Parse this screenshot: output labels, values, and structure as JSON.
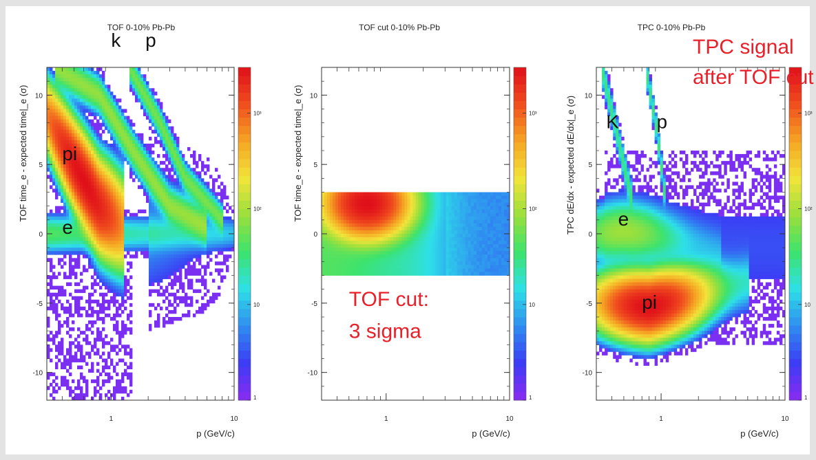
{
  "chart_data": [
    {
      "type": "heatmap",
      "title": "TOF 0-10% Pb-Pb",
      "xlabel": "p (GeV/c)",
      "ylabel": "TOF time_e - expected time|_e (σ)",
      "xscale": "log",
      "xlim": [
        0.3,
        10
      ],
      "ylim": [
        -12,
        12
      ],
      "zscale": "log",
      "zlim": [
        1,
        3000
      ],
      "x_ticks": [
        "1",
        "10"
      ],
      "y_ticks": [
        "10",
        "5",
        "0",
        "-5",
        "-10"
      ],
      "z_ticks": [
        "1",
        "10",
        "10²",
        "10³"
      ],
      "annotations": [
        {
          "text": "k",
          "x": 1.0,
          "y": 13.5
        },
        {
          "text": "p",
          "x": 1.9,
          "y": 13.5
        },
        {
          "text": "pi",
          "x": 0.4,
          "y": 5.3
        },
        {
          "text": "e",
          "x": 0.4,
          "y": 0.0
        }
      ],
      "bands": [
        {
          "name": "pi",
          "center": [
            [
              0.3,
              8.5
            ],
            [
              0.5,
              5.0
            ],
            [
              0.8,
              2.0
            ],
            [
              1.3,
              0.5
            ]
          ],
          "width": 1.6,
          "peak": 3000
        },
        {
          "name": "e",
          "center": [
            [
              0.3,
              0
            ],
            [
              10,
              0
            ]
          ],
          "width": 0.9,
          "peak": 40
        },
        {
          "name": "k",
          "center": [
            [
              0.35,
              12
            ],
            [
              0.8,
              10
            ],
            [
              1.5,
              6
            ],
            [
              3,
              2
            ],
            [
              6,
              0.5
            ]
          ],
          "width": 0.9,
          "peak": 80
        },
        {
          "name": "p",
          "center": [
            [
              1.4,
              12
            ],
            [
              2.5,
              8
            ],
            [
              4,
              4
            ],
            [
              8,
              1
            ]
          ],
          "width": 0.7,
          "peak": 60
        }
      ]
    },
    {
      "type": "heatmap",
      "title": "TOF cut 0-10% Pb-Pb",
      "xlabel": "p (GeV/c)",
      "ylabel": "TOF time_e - expected time|_e (σ)",
      "xscale": "log",
      "xlim": [
        0.3,
        10
      ],
      "ylim": [
        -12,
        12
      ],
      "zscale": "log",
      "zlim": [
        1,
        3000
      ],
      "x_ticks": [
        "1",
        "10"
      ],
      "y_ticks": [
        "10",
        "5",
        "0",
        "-5",
        "-10"
      ],
      "z_ticks": [
        "1",
        "10",
        "10²",
        "10³"
      ],
      "cut_range": [
        -3,
        3
      ],
      "annotations": [
        {
          "text": "TOF cut:",
          "x": 0.5,
          "y": -5.2
        },
        {
          "text": "3 sigma",
          "x": 0.5,
          "y": -7.5
        }
      ]
    },
    {
      "type": "heatmap",
      "title": "TPC 0-10% Pb-Pb",
      "xlabel": "p (GeV/c)",
      "ylabel": "TPC dE/dx - expected dE/dx|_e (σ)",
      "xscale": "log",
      "xlim": [
        0.3,
        10
      ],
      "ylim": [
        -12,
        12
      ],
      "zscale": "log",
      "zlim": [
        1,
        3000
      ],
      "x_ticks": [
        "1",
        "10"
      ],
      "y_ticks": [
        "10",
        "5",
        "0",
        "-5",
        "-10"
      ],
      "z_ticks": [
        "1",
        "10",
        "10²",
        "10³"
      ],
      "annotations": [
        {
          "text": "TPC signal",
          "x": 1.8,
          "y": 13.0
        },
        {
          "text": "after TOF cut",
          "x": 1.8,
          "y": 10.8
        },
        {
          "text": "K",
          "x": 0.36,
          "y": 7.6
        },
        {
          "text": "p",
          "x": 0.92,
          "y": 7.6
        },
        {
          "text": "e",
          "x": 0.45,
          "y": 0.6
        },
        {
          "text": "pi",
          "x": 0.7,
          "y": -5.4
        }
      ],
      "bands": [
        {
          "name": "e",
          "center": [
            [
              0.3,
              0
            ],
            [
              0.5,
              0.2
            ],
            [
              0.8,
              0
            ],
            [
              1.5,
              -0.5
            ],
            [
              3,
              -1.5
            ]
          ],
          "width": 1.3,
          "peak": 80
        },
        {
          "name": "pi",
          "center": [
            [
              0.3,
              -5
            ],
            [
              0.8,
              -5.3
            ],
            [
              2,
              -4.5
            ],
            [
              5,
              -3.5
            ]
          ],
          "width": 1.3,
          "peak": 3000
        },
        {
          "name": "K",
          "center": [
            [
              0.33,
              12
            ],
            [
              0.42,
              8
            ],
            [
              0.5,
              5
            ],
            [
              0.6,
              2
            ]
          ],
          "width": 0.8,
          "peak": 30
        },
        {
          "name": "p",
          "center": [
            [
              0.75,
              12
            ],
            [
              0.9,
              8
            ],
            [
              1.0,
              5
            ],
            [
              1.1,
              2
            ]
          ],
          "width": 0.7,
          "peak": 30
        }
      ]
    }
  ],
  "colors": {
    "annotation_black": "#111111",
    "annotation_red": "#e8202a",
    "palette": [
      "#ffffff",
      "#8b2cf0",
      "#3c3cf5",
      "#2f8cf0",
      "#2ee0e8",
      "#3ce36d",
      "#9ae03c",
      "#f2e43a",
      "#f5a623",
      "#f04e1e",
      "#e0101a"
    ]
  }
}
